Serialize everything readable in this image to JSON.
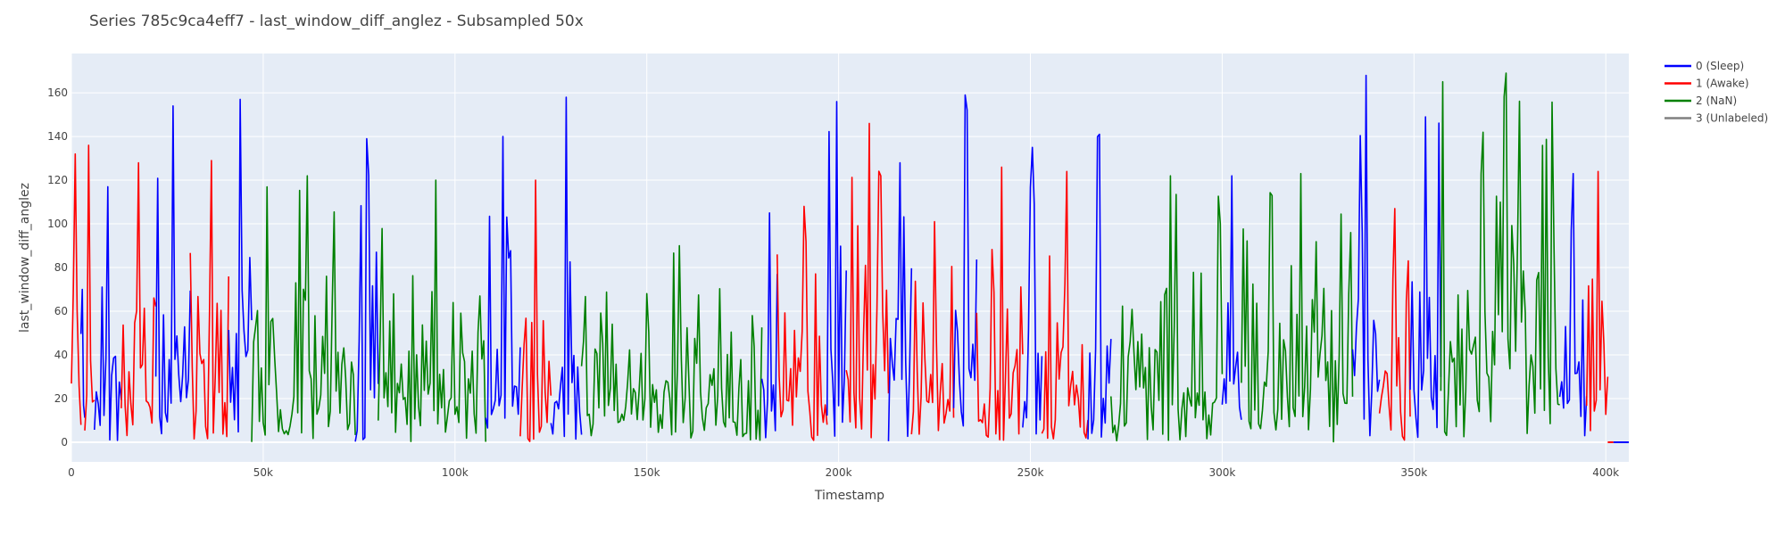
{
  "chart_data": {
    "type": "line",
    "title": "Series 785c9ca4eff7 - last_window_diff_anglez - Subsampled 50x",
    "xlabel": "Timestamp",
    "ylabel": "last_window_diff_anglez",
    "xlim": [
      0,
      406000
    ],
    "ylim": [
      -9,
      178
    ],
    "x_ticks": [
      0,
      50000,
      100000,
      150000,
      200000,
      250000,
      300000,
      350000,
      400000
    ],
    "x_tick_labels": [
      "0",
      "50k",
      "100k",
      "150k",
      "200k",
      "250k",
      "300k",
      "350k",
      "400k"
    ],
    "y_ticks": [
      0,
      20,
      40,
      60,
      80,
      100,
      120,
      140,
      160
    ],
    "y_tick_labels": [
      "0",
      "20",
      "40",
      "60",
      "80",
      "100",
      "120",
      "140",
      "160"
    ],
    "grid": true,
    "legend_position": "top-right",
    "legend": [
      {
        "label": "0 (Sleep)",
        "color": "#0000ff"
      },
      {
        "label": "1 (Awake)",
        "color": "#ff0000"
      },
      {
        "label": "2 (NaN)",
        "color": "#008000"
      },
      {
        "label": "3 (Unlabeled)",
        "color": "#808080"
      }
    ],
    "segments": [
      {
        "series": 1,
        "x0": 0,
        "x1": 2500,
        "peak": 132
      },
      {
        "series": 0,
        "x0": 2500,
        "x1": 3500,
        "peak": 70
      },
      {
        "series": 1,
        "x0": 3500,
        "x1": 6000,
        "peak": 136
      },
      {
        "series": 0,
        "x0": 6000,
        "x1": 13000,
        "peak": 117
      },
      {
        "series": 1,
        "x0": 13000,
        "x1": 22000,
        "peak": 128
      },
      {
        "series": 0,
        "x0": 22000,
        "x1": 31000,
        "peak": 154
      },
      {
        "series": 1,
        "x0": 31000,
        "x1": 41000,
        "peak": 129
      },
      {
        "series": 0,
        "x0": 41000,
        "x1": 47000,
        "peak": 157
      },
      {
        "series": 2,
        "x0": 47000,
        "x1": 74000,
        "peak": 122
      },
      {
        "series": 0,
        "x0": 74000,
        "x1": 80000,
        "peak": 139
      },
      {
        "series": 2,
        "x0": 80000,
        "x1": 108000,
        "peak": 120
      },
      {
        "series": 0,
        "x0": 108000,
        "x1": 117000,
        "peak": 140
      },
      {
        "series": 1,
        "x0": 117000,
        "x1": 125000,
        "peak": 120
      },
      {
        "series": 0,
        "x0": 125000,
        "x1": 133000,
        "peak": 158
      },
      {
        "series": 2,
        "x0": 133000,
        "x1": 180000,
        "peak": 90
      },
      {
        "series": 0,
        "x0": 180000,
        "x1": 184000,
        "peak": 105
      },
      {
        "series": 1,
        "x0": 184000,
        "x1": 197000,
        "peak": 108
      },
      {
        "series": 0,
        "x0": 197000,
        "x1": 202000,
        "peak": 156
      },
      {
        "series": 1,
        "x0": 202000,
        "x1": 213000,
        "peak": 146
      },
      {
        "series": 0,
        "x0": 213000,
        "x1": 219000,
        "peak": 128
      },
      {
        "series": 1,
        "x0": 219000,
        "x1": 230000,
        "peak": 101
      },
      {
        "series": 0,
        "x0": 230000,
        "x1": 236000,
        "peak": 159
      },
      {
        "series": 1,
        "x0": 236000,
        "x1": 248000,
        "peak": 126
      },
      {
        "series": 0,
        "x0": 248000,
        "x1": 253000,
        "peak": 135
      },
      {
        "series": 1,
        "x0": 253000,
        "x1": 265000,
        "peak": 124
      },
      {
        "series": 0,
        "x0": 265000,
        "x1": 271000,
        "peak": 141
      },
      {
        "series": 2,
        "x0": 271000,
        "x1": 300000,
        "peak": 122
      },
      {
        "series": 0,
        "x0": 300000,
        "x1": 305000,
        "peak": 122
      },
      {
        "series": 2,
        "x0": 305000,
        "x1": 334000,
        "peak": 123
      },
      {
        "series": 0,
        "x0": 334000,
        "x1": 341000,
        "peak": 168
      },
      {
        "series": 1,
        "x0": 341000,
        "x1": 349000,
        "peak": 107
      },
      {
        "series": 0,
        "x0": 349000,
        "x1": 357000,
        "peak": 149
      },
      {
        "series": 2,
        "x0": 357000,
        "x1": 388000,
        "peak": 169
      },
      {
        "series": 0,
        "x0": 388000,
        "x1": 395000,
        "peak": 123
      },
      {
        "series": 1,
        "x0": 395000,
        "x1": 400500,
        "peak": 124
      }
    ],
    "flat_tail": [
      {
        "series": 1,
        "x0": 400500,
        "x1": 402000,
        "y": 0
      },
      {
        "series": 0,
        "x0": 402000,
        "x1": 406000,
        "y": 0
      }
    ]
  }
}
